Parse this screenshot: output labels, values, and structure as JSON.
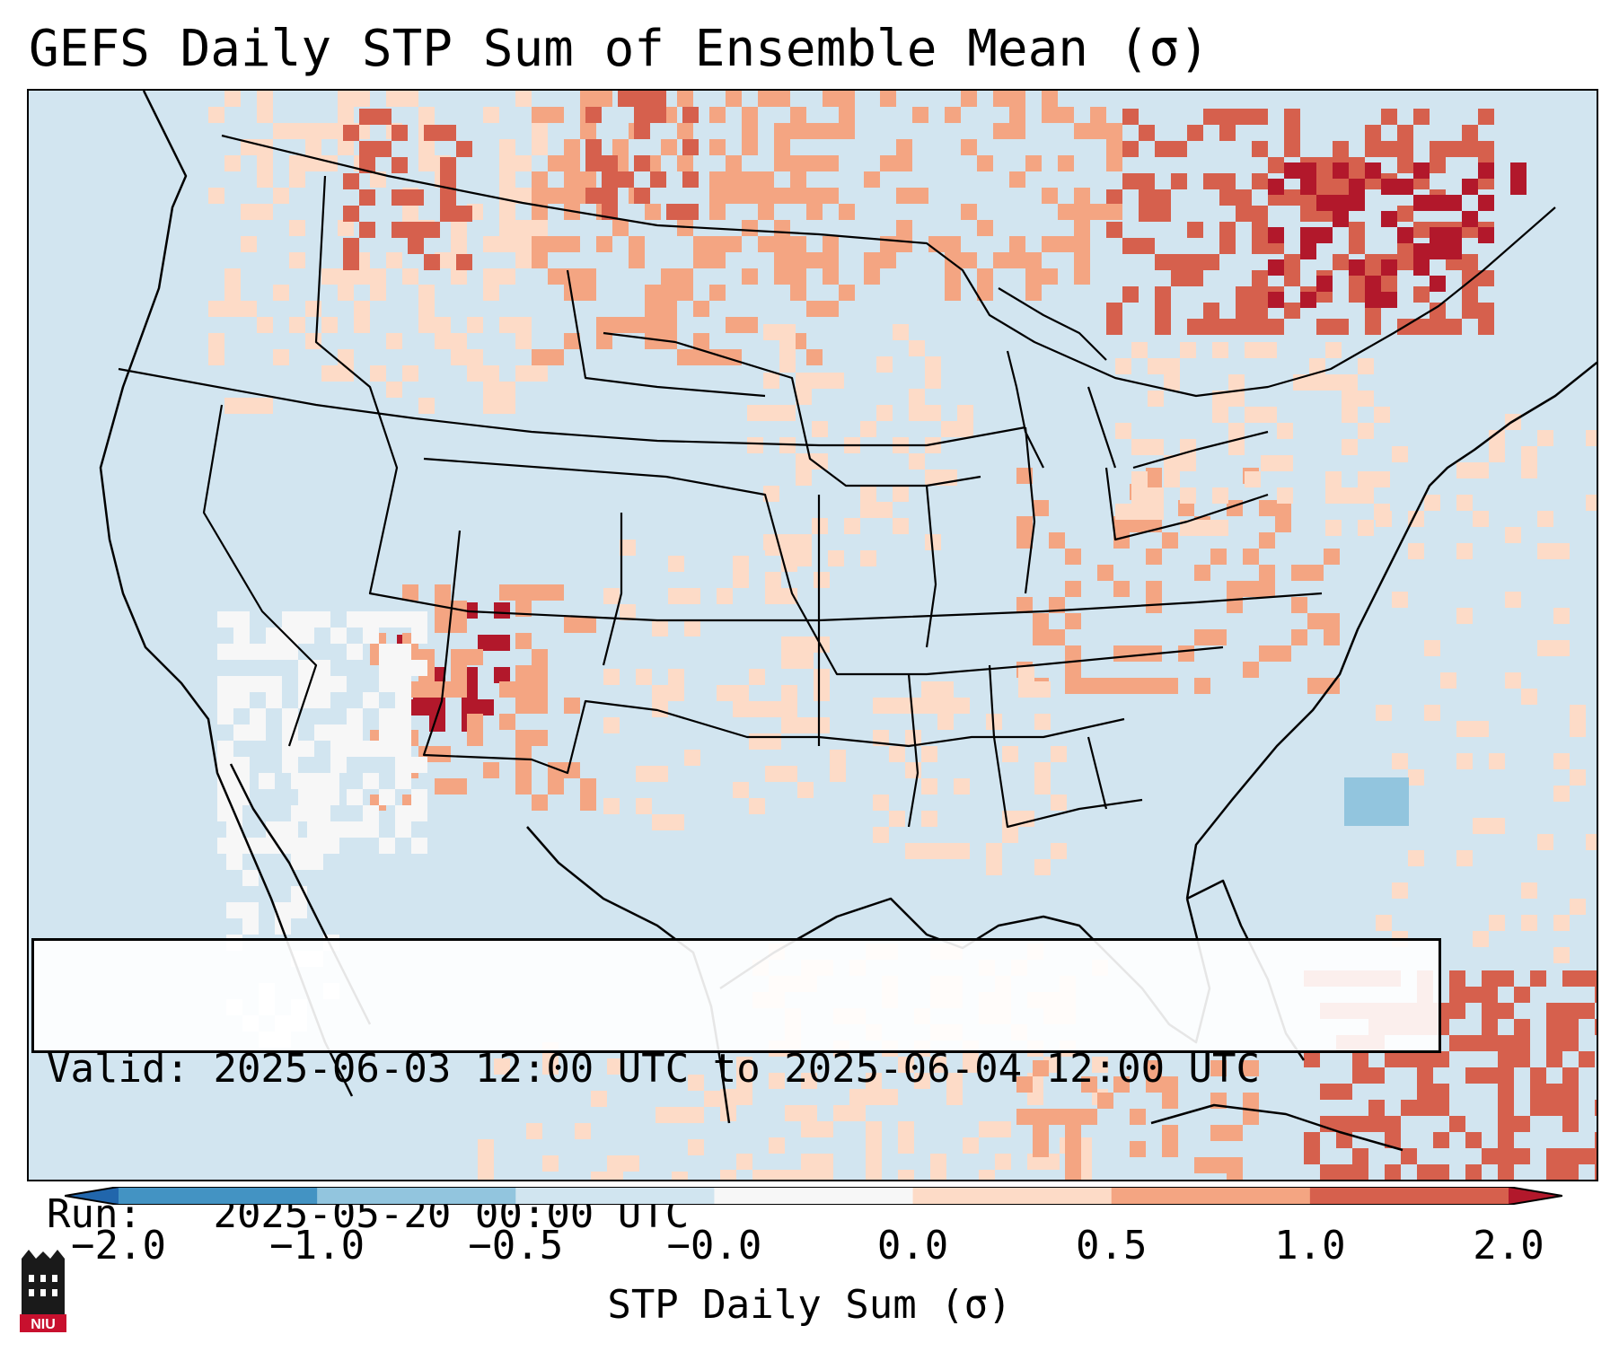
{
  "title": "GEFS Daily STP Sum of Ensemble Mean (σ)",
  "info": {
    "valid_label": "Valid:",
    "valid_value": "2025-06-03 12:00 UTC to 2025-06-04 12:00 UTC",
    "run_label": "Run:",
    "run_value": "2025-05-20 00:00 UTC"
  },
  "colorbar": {
    "label": "STP Daily Sum (σ)",
    "ticks": [
      "−2.0",
      "−1.0",
      "−0.5",
      "−0.0",
      "0.0",
      "0.5",
      "1.0",
      "2.0"
    ],
    "colors": [
      "#4393c3",
      "#92c5de",
      "#d1e5f0",
      "#f7f7f7",
      "#fddbc7",
      "#f4a582",
      "#d6604d"
    ],
    "under_color": "#2166ac",
    "over_color": "#b2182b"
  },
  "logo": {
    "icon": "niu-logo-icon",
    "text": "NIU",
    "color": "#c8102e"
  },
  "map": {
    "background_color": "#d2e5f0",
    "regions": [
      {
        "name": "northern-rockies-mid",
        "color": "#fddbc7"
      },
      {
        "name": "northern-rockies-high",
        "color": "#d6604d"
      },
      {
        "name": "canadian-prairies",
        "color": "#f4a582"
      },
      {
        "name": "great-lakes-canada-high",
        "color": "#d6604d"
      },
      {
        "name": "quebec-maritimes",
        "color": "#b2182b"
      },
      {
        "name": "four-corners-high",
        "color": "#b2182b"
      },
      {
        "name": "southwest-dry",
        "color": "#f7f7f7"
      },
      {
        "name": "mid-atlantic-moderate",
        "color": "#f4a582"
      },
      {
        "name": "gulf-moderate",
        "color": "#fddbc7"
      },
      {
        "name": "caribbean-high",
        "color": "#d6604d"
      },
      {
        "name": "carolina-coast-low",
        "color": "#92c5de"
      }
    ]
  }
}
